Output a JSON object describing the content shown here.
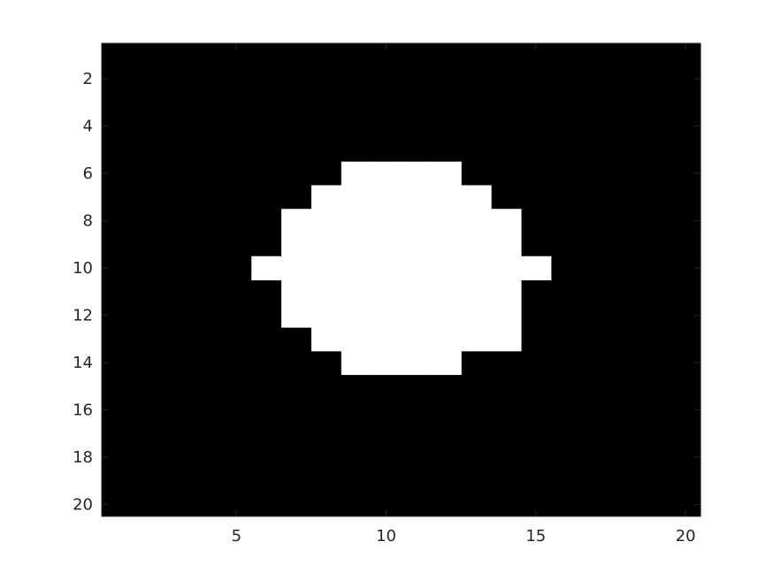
{
  "chart_data": {
    "type": "heatmap",
    "colormap": "gray",
    "colors": {
      "zero": "#000000",
      "one": "#ffffff",
      "axis": "#262626"
    },
    "grid": false,
    "xlim": [
      0.5,
      20.5
    ],
    "ylim": [
      0.5,
      20.5
    ],
    "y_reversed": true,
    "xticks": [
      5,
      10,
      15,
      20
    ],
    "yticks": [
      2,
      4,
      6,
      8,
      10,
      12,
      14,
      16,
      18,
      20
    ],
    "xtick_labels": [
      "5",
      "10",
      "15",
      "20"
    ],
    "ytick_labels": [
      "2",
      "4",
      "6",
      "8",
      "10",
      "12",
      "14",
      "16",
      "18",
      "20"
    ],
    "title": "",
    "xlabel": "",
    "ylabel": "",
    "matrix": [
      [
        0,
        0,
        0,
        0,
        0,
        0,
        0,
        0,
        0,
        0,
        0,
        0,
        0,
        0,
        0,
        0,
        0,
        0,
        0,
        0
      ],
      [
        0,
        0,
        0,
        0,
        0,
        0,
        0,
        0,
        0,
        0,
        0,
        0,
        0,
        0,
        0,
        0,
        0,
        0,
        0,
        0
      ],
      [
        0,
        0,
        0,
        0,
        0,
        0,
        0,
        0,
        0,
        0,
        0,
        0,
        0,
        0,
        0,
        0,
        0,
        0,
        0,
        0
      ],
      [
        0,
        0,
        0,
        0,
        0,
        0,
        0,
        0,
        0,
        0,
        0,
        0,
        0,
        0,
        0,
        0,
        0,
        0,
        0,
        0
      ],
      [
        0,
        0,
        0,
        0,
        0,
        0,
        0,
        0,
        0,
        0,
        0,
        0,
        0,
        0,
        0,
        0,
        0,
        0,
        0,
        0
      ],
      [
        0,
        0,
        0,
        0,
        0,
        0,
        0,
        0,
        1,
        1,
        1,
        1,
        0,
        0,
        0,
        0,
        0,
        0,
        0,
        0
      ],
      [
        0,
        0,
        0,
        0,
        0,
        0,
        0,
        1,
        1,
        1,
        1,
        1,
        1,
        0,
        0,
        0,
        0,
        0,
        0,
        0
      ],
      [
        0,
        0,
        0,
        0,
        0,
        0,
        1,
        1,
        1,
        1,
        1,
        1,
        1,
        1,
        0,
        0,
        0,
        0,
        0,
        0
      ],
      [
        0,
        0,
        0,
        0,
        0,
        0,
        1,
        1,
        1,
        1,
        1,
        1,
        1,
        1,
        0,
        0,
        0,
        0,
        0,
        0
      ],
      [
        0,
        0,
        0,
        0,
        0,
        1,
        1,
        1,
        1,
        1,
        1,
        1,
        1,
        1,
        1,
        0,
        0,
        0,
        0,
        0
      ],
      [
        0,
        0,
        0,
        0,
        0,
        0,
        1,
        1,
        1,
        1,
        1,
        1,
        1,
        1,
        0,
        0,
        0,
        0,
        0,
        0
      ],
      [
        0,
        0,
        0,
        0,
        0,
        0,
        1,
        1,
        1,
        1,
        1,
        1,
        1,
        1,
        0,
        0,
        0,
        0,
        0,
        0
      ],
      [
        0,
        0,
        0,
        0,
        0,
        0,
        0,
        1,
        1,
        1,
        1,
        1,
        1,
        1,
        0,
        0,
        0,
        0,
        0,
        0
      ],
      [
        0,
        0,
        0,
        0,
        0,
        0,
        0,
        0,
        1,
        1,
        1,
        1,
        0,
        0,
        0,
        0,
        0,
        0,
        0,
        0
      ],
      [
        0,
        0,
        0,
        0,
        0,
        0,
        0,
        0,
        0,
        0,
        0,
        0,
        0,
        0,
        0,
        0,
        0,
        0,
        0,
        0
      ],
      [
        0,
        0,
        0,
        0,
        0,
        0,
        0,
        0,
        0,
        0,
        0,
        0,
        0,
        0,
        0,
        0,
        0,
        0,
        0,
        0
      ],
      [
        0,
        0,
        0,
        0,
        0,
        0,
        0,
        0,
        0,
        0,
        0,
        0,
        0,
        0,
        0,
        0,
        0,
        0,
        0,
        0
      ],
      [
        0,
        0,
        0,
        0,
        0,
        0,
        0,
        0,
        0,
        0,
        0,
        0,
        0,
        0,
        0,
        0,
        0,
        0,
        0,
        0
      ],
      [
        0,
        0,
        0,
        0,
        0,
        0,
        0,
        0,
        0,
        0,
        0,
        0,
        0,
        0,
        0,
        0,
        0,
        0,
        0,
        0
      ],
      [
        0,
        0,
        0,
        0,
        0,
        0,
        0,
        0,
        0,
        0,
        0,
        0,
        0,
        0,
        0,
        0,
        0,
        0,
        0,
        0
      ]
    ]
  }
}
